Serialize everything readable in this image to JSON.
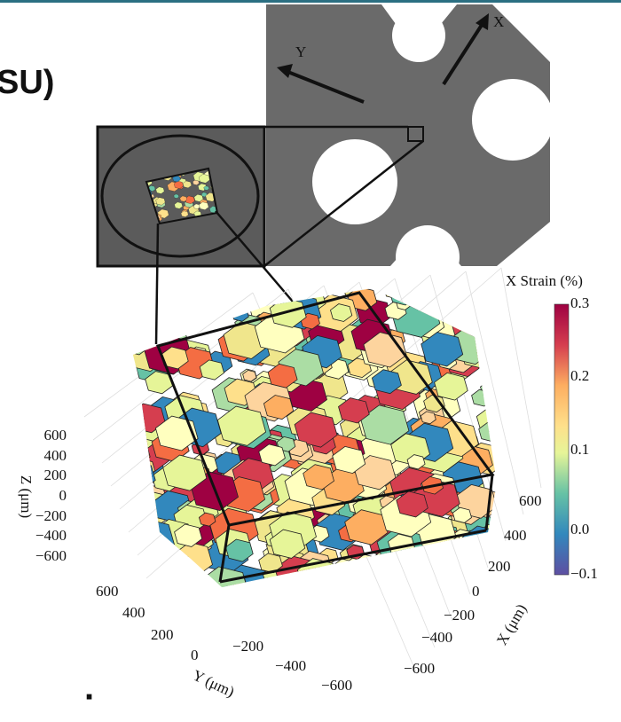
{
  "header": {
    "title_fragment": "SU)"
  },
  "specimen": {
    "axis_y": "Y",
    "axis_x": "X"
  },
  "plot": {
    "colorbar": {
      "label": "X Strain (%)",
      "ticks": [
        "0.3",
        "0.2",
        "0.1",
        "0.0",
        "−0.1"
      ]
    },
    "z_axis": {
      "label": "Z (μm)",
      "ticks": [
        "600",
        "400",
        "200",
        "0",
        "−200",
        "−400",
        "−600"
      ]
    },
    "y_axis": {
      "label": "Y (μm)",
      "ticks": [
        "600",
        "400",
        "200",
        "0",
        "−200",
        "−400",
        "−600"
      ]
    },
    "x_axis": {
      "label": "X (μm)",
      "ticks": [
        "600",
        "400",
        "200",
        "0",
        "−200",
        "−400",
        "−600"
      ]
    }
  },
  "footer": {
    "bullet": "."
  }
}
